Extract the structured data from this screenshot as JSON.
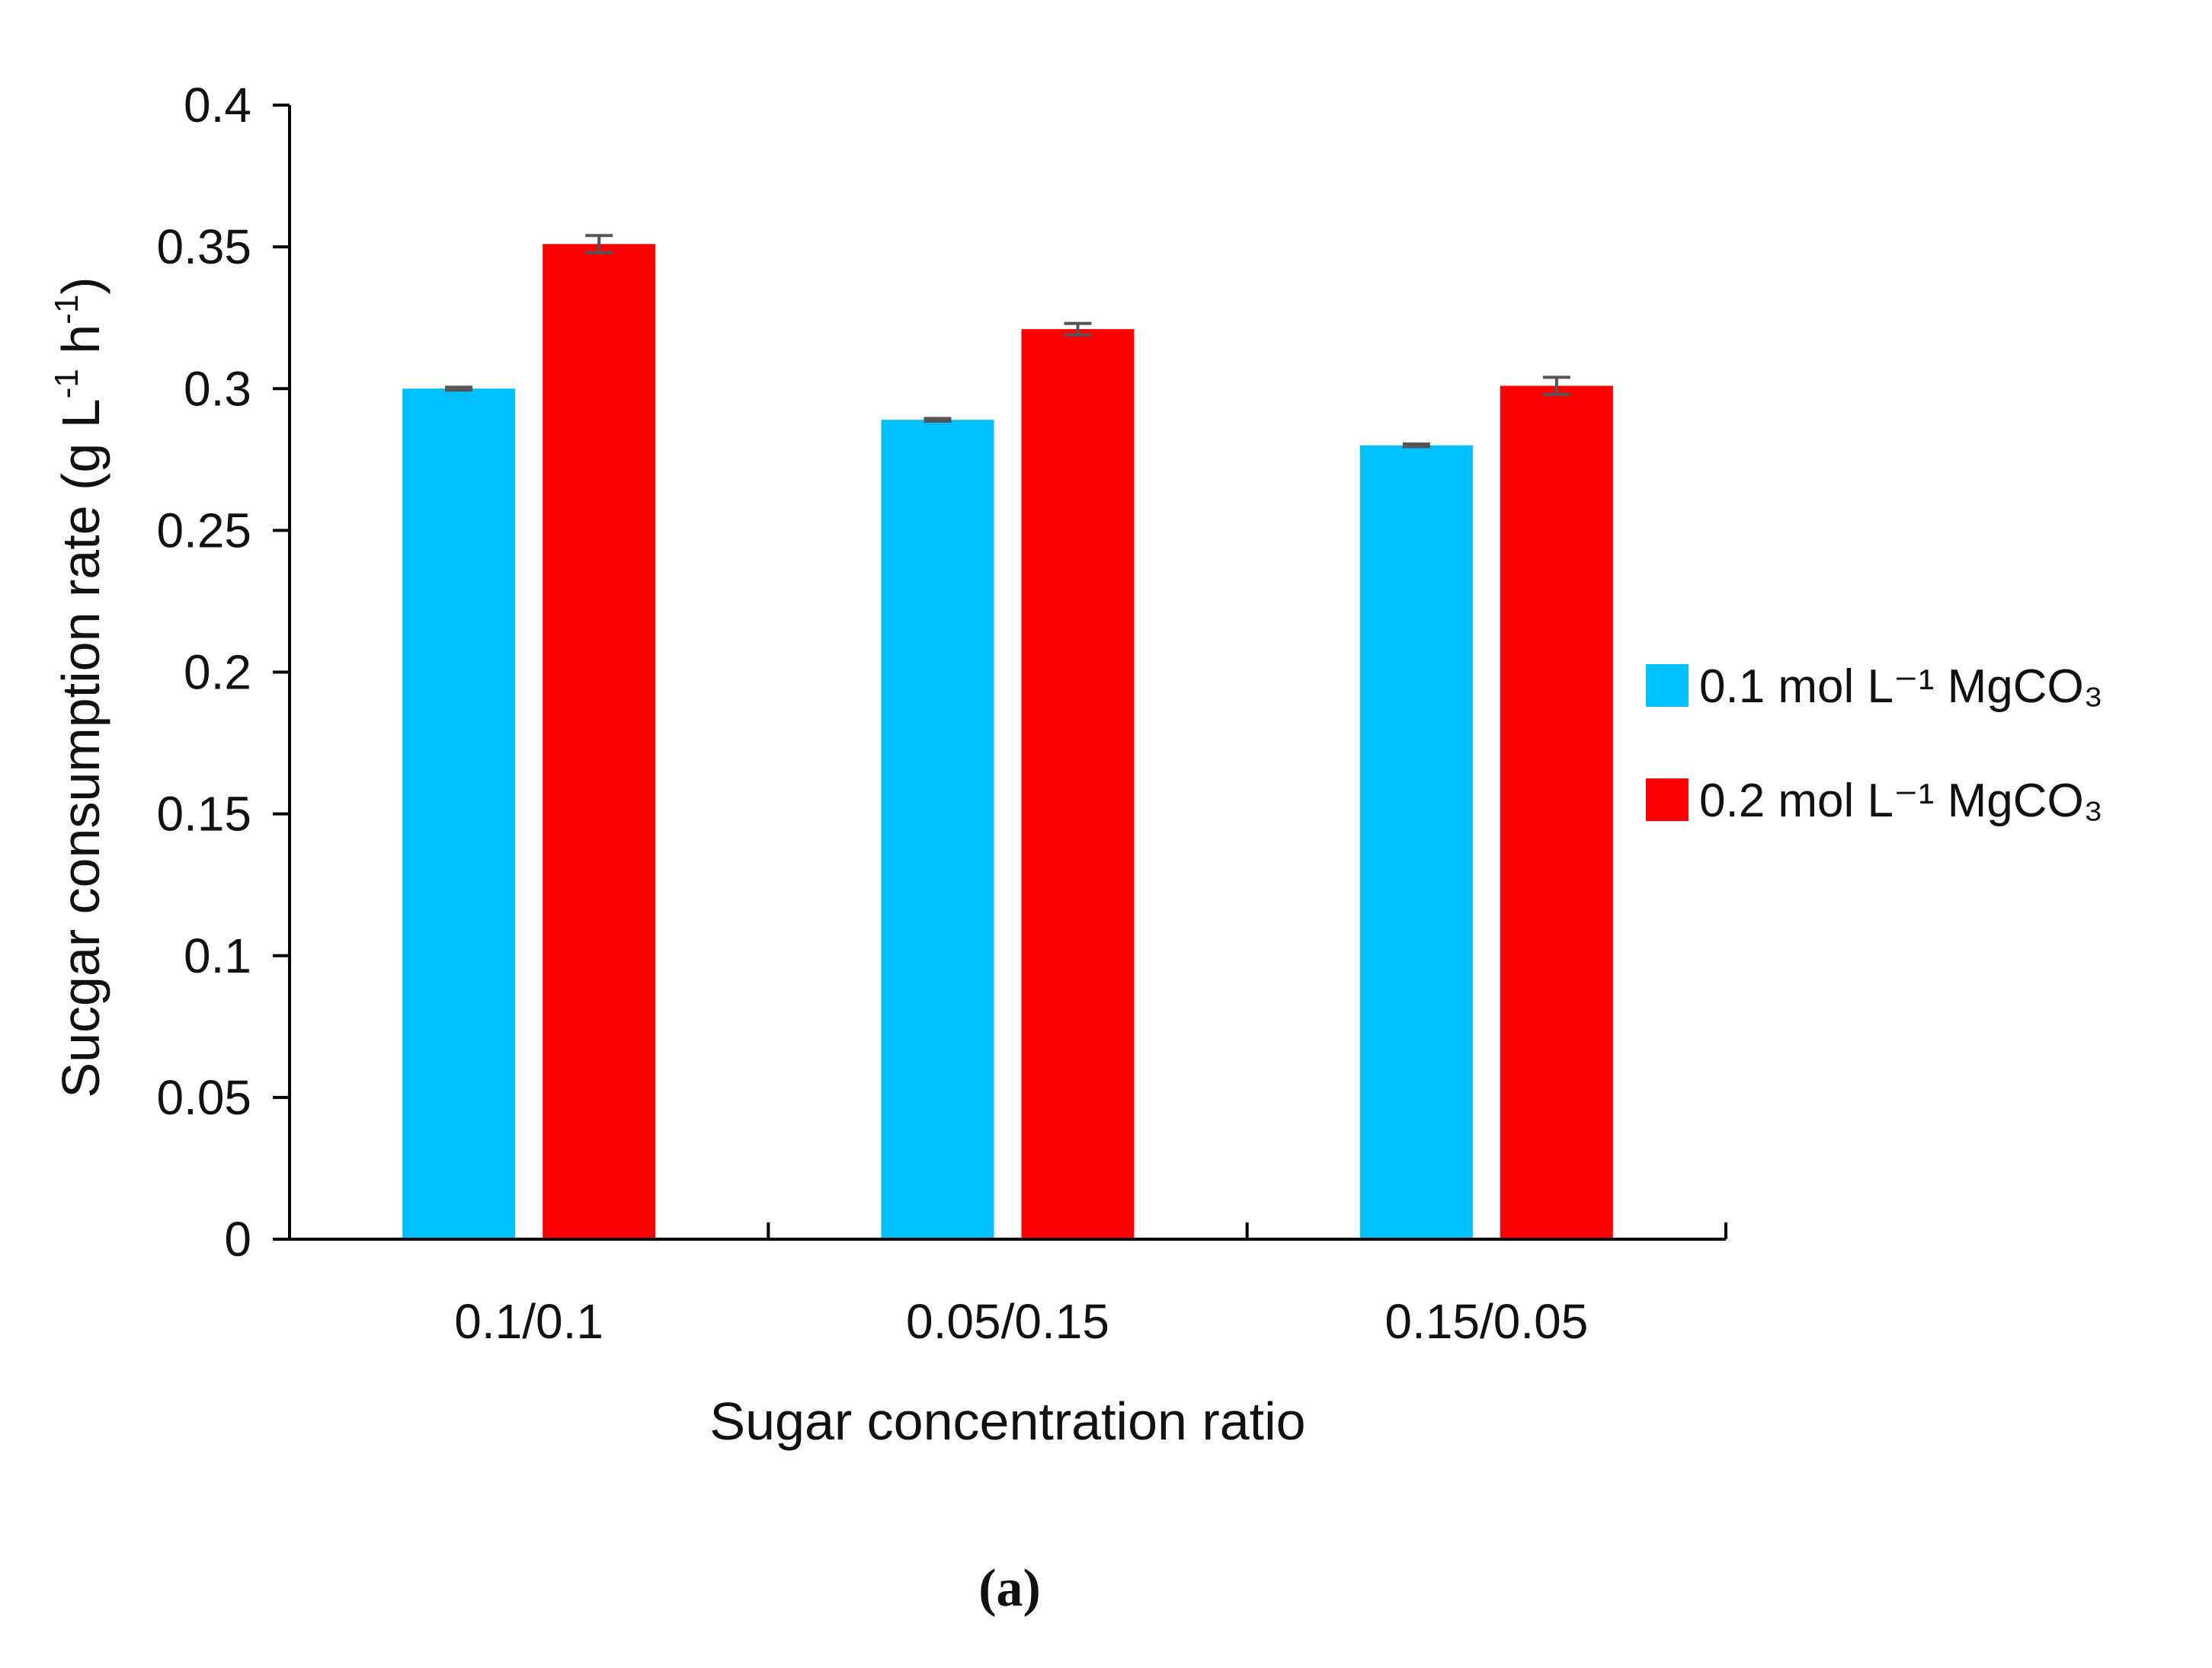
{
  "chart_data": {
    "type": "bar",
    "title": "",
    "xlabel": "Sugar concentration ratio",
    "ylabel": "Sucgar consumption rate (g L",
    "ylabel_sup1": "-1",
    "ylabel_mid": " h",
    "ylabel_sup2": "-1",
    "ylabel_end": ")",
    "categories": [
      "0.1/0.1",
      "0.05/0.15",
      "0.15/0.05"
    ],
    "ylim": [
      0,
      0.4
    ],
    "yticks": [
      "0",
      "0.05",
      "0.1",
      "0.15",
      "0.2",
      "0.25",
      "0.3",
      "0.35",
      "0.4"
    ],
    "ytick_values": [
      0,
      0.05,
      0.1,
      0.15,
      0.2,
      0.25,
      0.3,
      0.35,
      0.4
    ],
    "grid": false,
    "legend_position": "right",
    "series": [
      {
        "name": "0.1 mol L⁻¹  MgCO₃",
        "color": "#00BFFF",
        "values": [
          0.3,
          0.289,
          0.28
        ],
        "errors": [
          0.0005,
          0.0005,
          0.0005
        ]
      },
      {
        "name": "0.2 mol L⁻¹  MgCO₃",
        "color": "#FF0000",
        "values": [
          0.351,
          0.321,
          0.301
        ],
        "errors": [
          0.003,
          0.002,
          0.003
        ]
      }
    ],
    "caption": "(a)"
  }
}
